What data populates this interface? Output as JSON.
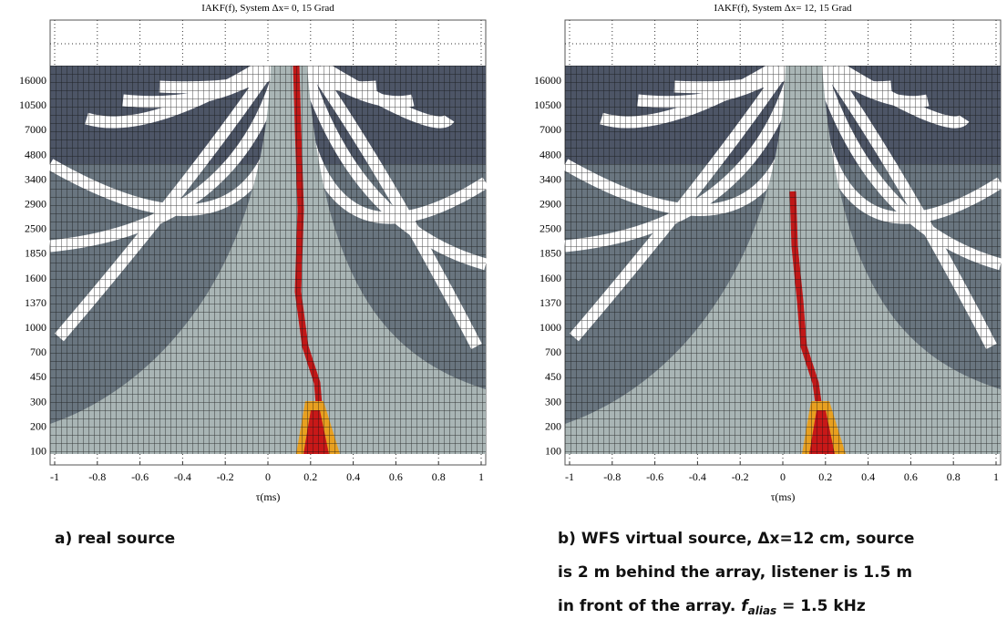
{
  "panels": [
    {
      "title": "IAKF(f),  System Δx= 0,   15 Grad",
      "yticks": [
        "16000",
        "10500",
        "7000",
        "4800",
        "3400",
        "2900",
        "2500",
        "1850",
        "1600",
        "1370",
        "1000",
        "700",
        "450",
        "300",
        "200",
        "100"
      ],
      "xticks": [
        "-1",
        "-0.8",
        "-0.6",
        "-0.4",
        "-0.2",
        "0",
        "0.2",
        "0.4",
        "0.6",
        "0.8",
        "1"
      ],
      "xlabel": "τ(ms)"
    },
    {
      "title": "IAKF(f),  System Δx= 12,   15 Grad",
      "yticks": [
        "16000",
        "10500",
        "7000",
        "4800",
        "3400",
        "2900",
        "2500",
        "1850",
        "1600",
        "1370",
        "1000",
        "700",
        "450",
        "300",
        "200",
        "100"
      ],
      "xticks": [
        "-1",
        "-0.8",
        "-0.6",
        "-0.4",
        "-0.2",
        "0",
        "0.2",
        "0.4",
        "0.6",
        "0.8",
        "1"
      ],
      "xlabel": "τ(ms)"
    }
  ],
  "captions": {
    "a": "a) real source",
    "b": {
      "line1": "b) WFS virtual source, Δx=12 cm, source",
      "line2": "is 2 m behind the array, listener is 1.5 m",
      "line3": [
        "in front of the array. ",
        "f",
        "alias",
        " = 1.5 kHz"
      ]
    }
  }
}
